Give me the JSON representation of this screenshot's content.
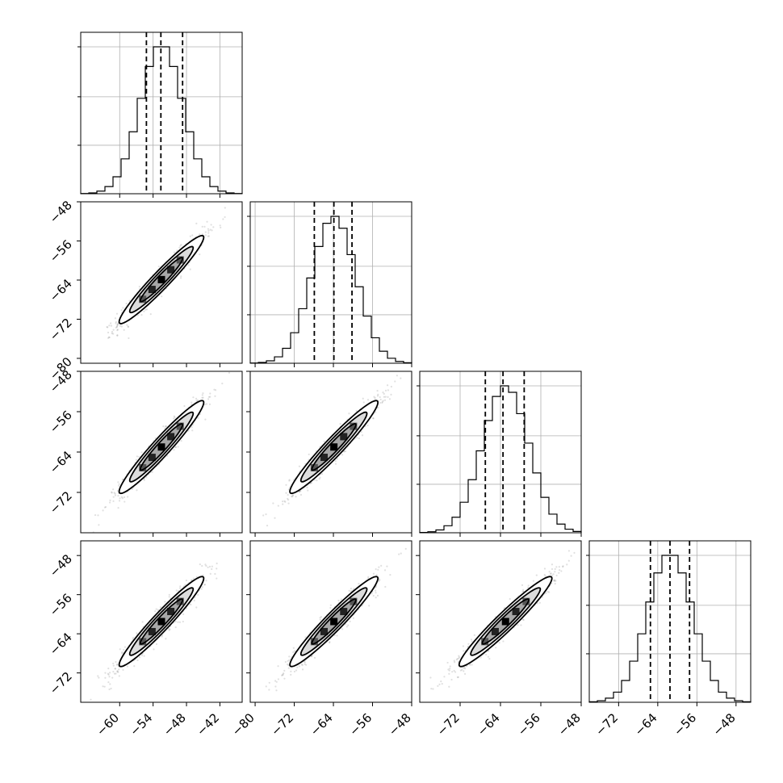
{
  "chart_data": {
    "type": "corner",
    "title": "",
    "parameters": [
      {
        "name": "",
        "range": [
          -67,
          -38
        ],
        "ticks": [
          -60,
          -54,
          -48,
          -42
        ]
      },
      {
        "name": "",
        "range": [
          -81,
          -48
        ],
        "ticks": [
          -80,
          -72,
          -64,
          -56,
          -48
        ]
      },
      {
        "name": "",
        "range": [
          -80,
          -48
        ],
        "ticks": [
          -72,
          -64,
          -56,
          -48
        ]
      },
      {
        "name": "",
        "range": [
          -78,
          -45
        ],
        "ticks": [
          -72,
          -64,
          -56,
          -48
        ]
      }
    ],
    "row_tick_labels": {
      "1": [
        -48,
        -56,
        -64,
        -72,
        -80
      ],
      "2": [
        -48,
        -56,
        -64,
        -72
      ],
      "3": [
        -48,
        -56,
        -64,
        -72
      ]
    },
    "marginal_histograms": [
      {
        "param": 0,
        "mean": -52.5,
        "sigma": 3.8,
        "quantiles": [
          -55.2,
          -52.6,
          -48.7
        ]
      },
      {
        "param": 1,
        "mean": -63.9,
        "sigma": 4.5,
        "quantiles": [
          -67.9,
          -63.9,
          -60.2
        ]
      },
      {
        "param": 2,
        "mean": -63.0,
        "sigma": 4.6,
        "quantiles": [
          -67.0,
          -63.5,
          -59.3
        ]
      },
      {
        "param": 3,
        "mean": -61.5,
        "sigma": 4.6,
        "quantiles": [
          -65.5,
          -61.5,
          -57.5
        ]
      }
    ],
    "pairs": [
      {
        "x": 0,
        "y": 1,
        "correlation": 0.96
      },
      {
        "x": 0,
        "y": 2,
        "correlation": 0.96
      },
      {
        "x": 1,
        "y": 2,
        "correlation": 0.96
      },
      {
        "x": 0,
        "y": 3,
        "correlation": 0.96
      },
      {
        "x": 1,
        "y": 3,
        "correlation": 0.96
      },
      {
        "x": 2,
        "y": 3,
        "correlation": 0.96
      }
    ],
    "grid": true,
    "legend": "none"
  }
}
